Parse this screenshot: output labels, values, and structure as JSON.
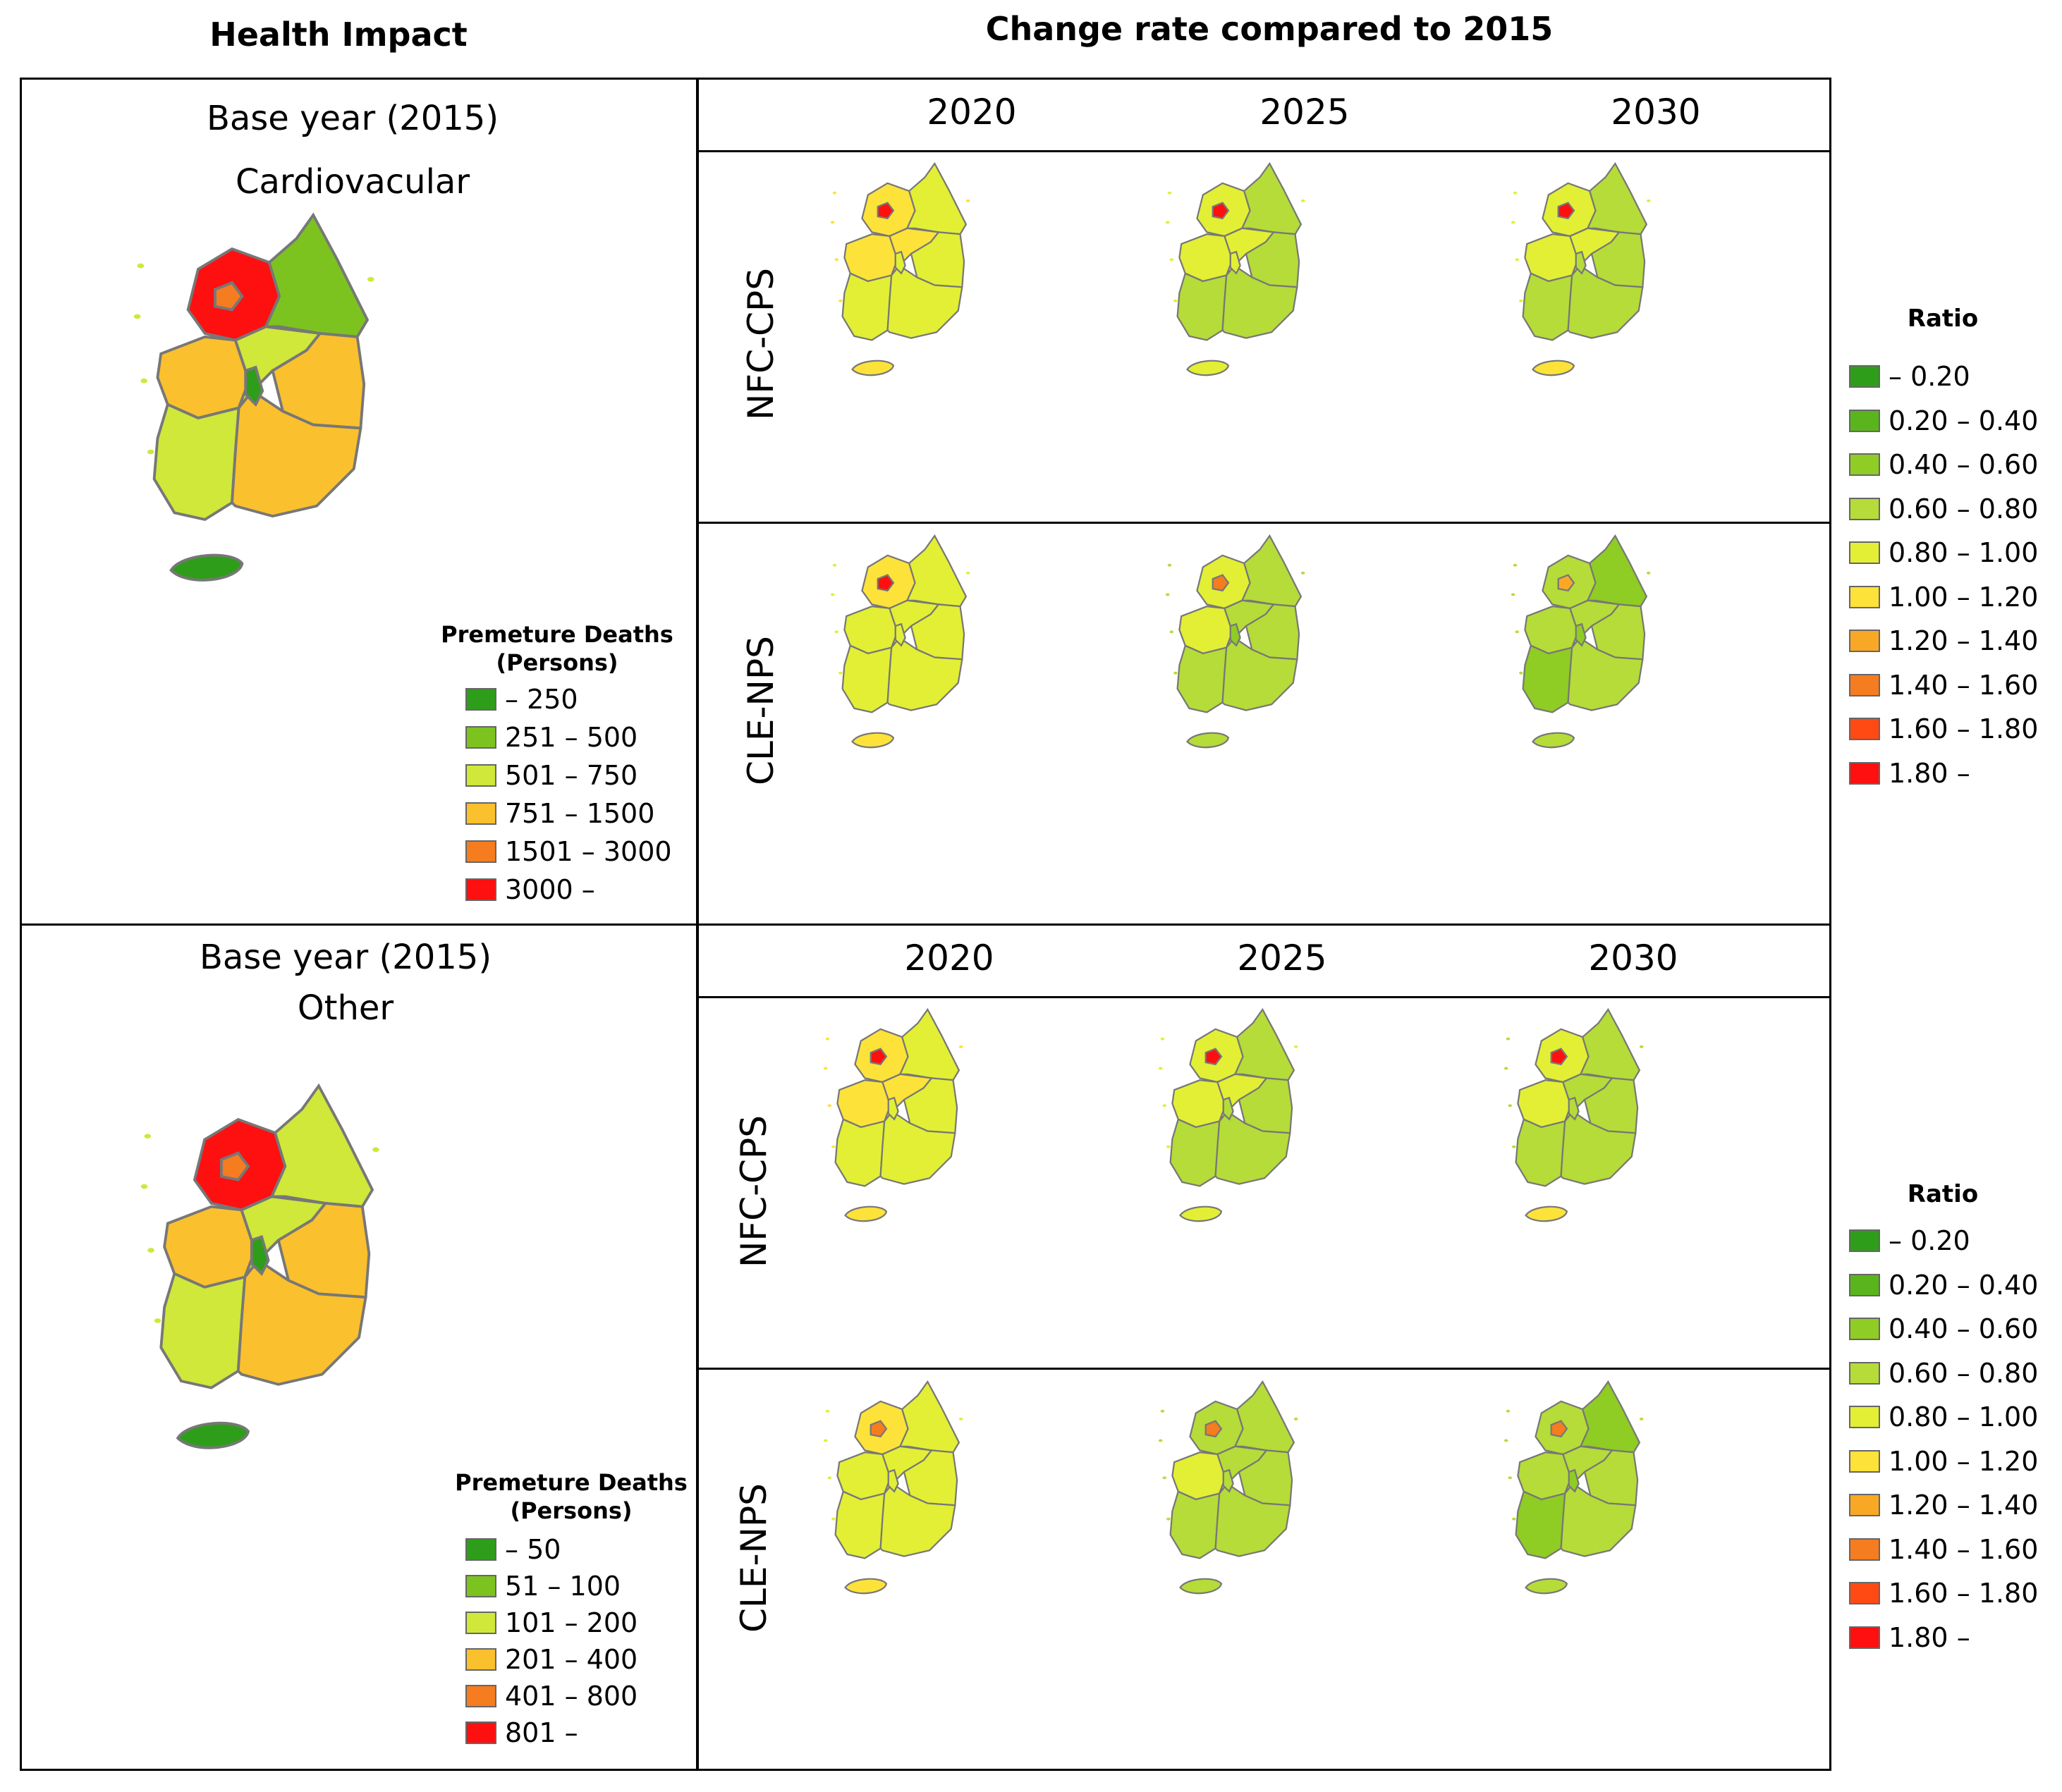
{
  "header": {
    "left_title": "Health Impact",
    "right_title": "Change rate compared to 2015"
  },
  "panels": {
    "top": {
      "base_title": "Base year (2015)",
      "cause": "Cardiovacular",
      "years": [
        "2020",
        "2025",
        "2030"
      ],
      "rows": [
        "NFC-CPS",
        "CLE-NPS"
      ]
    },
    "bottom": {
      "base_title": "Base year (2015)",
      "cause": "Other",
      "years": [
        "2020",
        "2025",
        "2030"
      ],
      "rows": [
        "NFC-CPS",
        "CLE-NPS"
      ]
    }
  },
  "legends": {
    "deaths_cardio": {
      "title_line1": "Premeture Deaths",
      "title_line2": "(Persons)",
      "items": [
        {
          "label": "– 250",
          "color": "#2e9e1a"
        },
        {
          "label": "251 – 500",
          "color": "#7cc31f"
        },
        {
          "label": "501 – 750",
          "color": "#cfe83a"
        },
        {
          "label": "751 – 1500",
          "color": "#fbc02d"
        },
        {
          "label": "1501 – 3000",
          "color": "#f57c1f"
        },
        {
          "label": "3000 –",
          "color": "#ff1010"
        }
      ]
    },
    "deaths_other": {
      "title_line1": "Premeture Deaths",
      "title_line2": "(Persons)",
      "items": [
        {
          "label": "– 50",
          "color": "#2e9e1a"
        },
        {
          "label": "51 – 100",
          "color": "#7cc31f"
        },
        {
          "label": "101 – 200",
          "color": "#cfe83a"
        },
        {
          "label": "201 – 400",
          "color": "#fbc02d"
        },
        {
          "label": "401 – 800",
          "color": "#f57c1f"
        },
        {
          "label": "801 –",
          "color": "#ff1010"
        }
      ]
    },
    "ratio_top": {
      "title": "Ratio",
      "items": [
        {
          "label": "– 0.20",
          "color": "#2e9e1a"
        },
        {
          "label": "0.20 – 0.40",
          "color": "#5ab51c"
        },
        {
          "label": "0.40 – 0.60",
          "color": "#8fcc24"
        },
        {
          "label": "0.60 – 0.80",
          "color": "#b5dc38"
        },
        {
          "label": "0.80 – 1.00",
          "color": "#e2ef35"
        },
        {
          "label": "1.00 – 1.20",
          "color": "#fde23a"
        },
        {
          "label": "1.20 – 1.40",
          "color": "#f9a825"
        },
        {
          "label": "1.40 – 1.60",
          "color": "#f57c1f"
        },
        {
          "label": "1.60 – 1.80",
          "color": "#ff4a14"
        },
        {
          "label": "1.80 –",
          "color": "#ff1010"
        }
      ]
    },
    "ratio_bottom": {
      "title": "Ratio",
      "items": [
        {
          "label": "– 0.20",
          "color": "#2e9e1a"
        },
        {
          "label": "0.20 – 0.40",
          "color": "#5ab51c"
        },
        {
          "label": "0.40 – 0.60",
          "color": "#8fcc24"
        },
        {
          "label": "0.60 – 0.80",
          "color": "#b5dc38"
        },
        {
          "label": "0.80 – 1.00",
          "color": "#e2ef35"
        },
        {
          "label": "1.00 – 1.20",
          "color": "#fde23a"
        },
        {
          "label": "1.20 – 1.40",
          "color": "#f9a825"
        },
        {
          "label": "1.40 – 1.60",
          "color": "#f57c1f"
        },
        {
          "label": "1.60 – 1.80",
          "color": "#ff4a14"
        },
        {
          "label": "1.80 –",
          "color": "#ff1010"
        }
      ]
    }
  },
  "map_styles": {
    "base_cardio": {
      "nw": "#ff1010",
      "seoul": "#f57c1f",
      "ne": "#7cc31f",
      "west": "#fbc02d",
      "center": "#cfe83a",
      "east": "#fbc02d",
      "sw": "#cfe83a",
      "se": "#fbc02d",
      "city": "#2e9e1a",
      "jeju": "#2e9e1a"
    },
    "base_other": {
      "nw": "#ff1010",
      "seoul": "#f57c1f",
      "ne": "#cfe83a",
      "west": "#fbc02d",
      "center": "#cfe83a",
      "east": "#fbc02d",
      "sw": "#cfe83a",
      "se": "#fbc02d",
      "city": "#2e9e1a",
      "jeju": "#2e9e1a"
    },
    "t_n20": {
      "nw": "#fde23a",
      "seoul": "#ff1010",
      "ne": "#e2ef35",
      "west": "#fde23a",
      "center": "#fde23a",
      "east": "#e2ef35",
      "sw": "#e2ef35",
      "se": "#e2ef35",
      "city": "#e2ef35",
      "jeju": "#fde23a"
    },
    "t_n25": {
      "nw": "#e2ef35",
      "seoul": "#ff1010",
      "ne": "#b5dc38",
      "west": "#e2ef35",
      "center": "#e2ef35",
      "east": "#b5dc38",
      "sw": "#b5dc38",
      "se": "#b5dc38",
      "city": "#e2ef35",
      "jeju": "#e2ef35"
    },
    "t_n30": {
      "nw": "#e2ef35",
      "seoul": "#ff1010",
      "ne": "#b5dc38",
      "west": "#e2ef35",
      "center": "#e2ef35",
      "east": "#b5dc38",
      "sw": "#b5dc38",
      "se": "#b5dc38",
      "city": "#b5dc38",
      "jeju": "#fde23a"
    },
    "t_c20": {
      "nw": "#fde23a",
      "seoul": "#ff1010",
      "ne": "#e2ef35",
      "west": "#e2ef35",
      "center": "#e2ef35",
      "east": "#e2ef35",
      "sw": "#e2ef35",
      "se": "#e2ef35",
      "city": "#e2ef35",
      "jeju": "#fde23a"
    },
    "t_c25": {
      "nw": "#e2ef35",
      "seoul": "#f57c1f",
      "ne": "#b5dc38",
      "west": "#e2ef35",
      "center": "#b5dc38",
      "east": "#b5dc38",
      "sw": "#b5dc38",
      "se": "#b5dc38",
      "city": "#8fcc24",
      "jeju": "#b5dc38"
    },
    "t_c30": {
      "nw": "#b5dc38",
      "seoul": "#f9a825",
      "ne": "#8fcc24",
      "west": "#b5dc38",
      "center": "#b5dc38",
      "east": "#b5dc38",
      "sw": "#8fcc24",
      "se": "#b5dc38",
      "city": "#8fcc24",
      "jeju": "#b5dc38"
    },
    "b_n20": {
      "nw": "#fde23a",
      "seoul": "#ff1010",
      "ne": "#e2ef35",
      "west": "#fde23a",
      "center": "#fde23a",
      "east": "#e2ef35",
      "sw": "#e2ef35",
      "se": "#e2ef35",
      "city": "#e2ef35",
      "jeju": "#fde23a"
    },
    "b_n25": {
      "nw": "#e2ef35",
      "seoul": "#ff1010",
      "ne": "#b5dc38",
      "west": "#e2ef35",
      "center": "#e2ef35",
      "east": "#b5dc38",
      "sw": "#b5dc38",
      "se": "#b5dc38",
      "city": "#b5dc38",
      "jeju": "#e2ef35"
    },
    "b_n30": {
      "nw": "#e2ef35",
      "seoul": "#ff1010",
      "ne": "#b5dc38",
      "west": "#e2ef35",
      "center": "#b5dc38",
      "east": "#b5dc38",
      "sw": "#b5dc38",
      "se": "#b5dc38",
      "city": "#b5dc38",
      "jeju": "#fde23a"
    },
    "b_c20": {
      "nw": "#fde23a",
      "seoul": "#f57c1f",
      "ne": "#e2ef35",
      "west": "#e2ef35",
      "center": "#e2ef35",
      "east": "#e2ef35",
      "sw": "#e2ef35",
      "se": "#e2ef35",
      "city": "#e2ef35",
      "jeju": "#fde23a"
    },
    "b_c25": {
      "nw": "#b5dc38",
      "seoul": "#f57c1f",
      "ne": "#b5dc38",
      "west": "#e2ef35",
      "center": "#b5dc38",
      "east": "#b5dc38",
      "sw": "#b5dc38",
      "se": "#b5dc38",
      "city": "#b5dc38",
      "jeju": "#b5dc38"
    },
    "b_c30": {
      "nw": "#b5dc38",
      "seoul": "#f57c1f",
      "ne": "#8fcc24",
      "west": "#b5dc38",
      "center": "#b5dc38",
      "east": "#b5dc38",
      "sw": "#8fcc24",
      "se": "#b5dc38",
      "city": "#8fcc24",
      "jeju": "#b5dc38"
    }
  }
}
